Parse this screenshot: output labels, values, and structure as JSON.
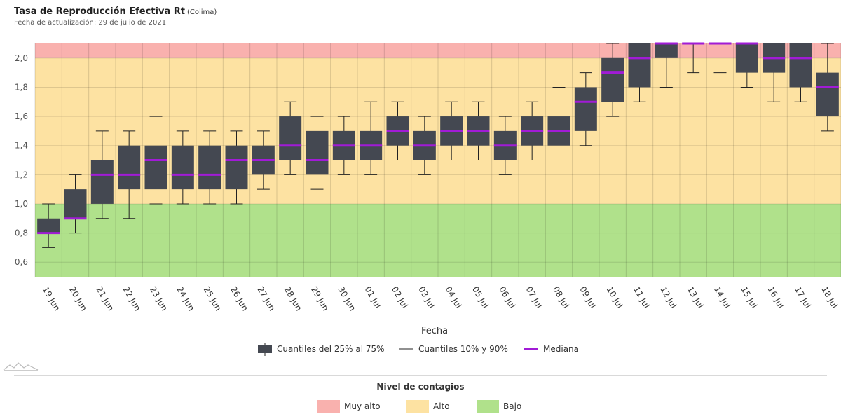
{
  "header": {
    "title": "Tasa de Reproducción Efectiva Rt",
    "region": "(Colima)",
    "updated": "Fecha de actualización: 29 de julio de 2021"
  },
  "chart_data": {
    "type": "boxplot",
    "xlabel": "Fecha",
    "ylabel": "",
    "ylim": [
      0.5,
      2.1
    ],
    "yticks": [
      0.6,
      0.8,
      1.0,
      1.2,
      1.4,
      1.6,
      1.8,
      2.0
    ],
    "ytick_labels": [
      "0,6",
      "0,8",
      "1,0",
      "1,2",
      "1,4",
      "1,6",
      "1,8",
      "2,0"
    ],
    "categories": [
      "19 Jun",
      "20 Jun",
      "21 Jun",
      "22 Jun",
      "23 Jun",
      "24 Jun",
      "25 Jun",
      "26 Jun",
      "27 Jun",
      "28 Jun",
      "29 Jun",
      "30 Jun",
      "01 Jul",
      "02 Jul",
      "03 Jul",
      "04 Jul",
      "05 Jul",
      "06 Jul",
      "07 Jul",
      "08 Jul",
      "09 Jul",
      "10 Jul",
      "11 Jul",
      "12 Jul",
      "13 Jul",
      "14 Jul",
      "15 Jul",
      "16 Jul",
      "17 Jul",
      "18 Jul"
    ],
    "p10": [
      0.7,
      0.8,
      0.9,
      0.9,
      1.0,
      1.0,
      1.0,
      1.0,
      1.1,
      1.2,
      1.1,
      1.2,
      1.2,
      1.3,
      1.2,
      1.3,
      1.3,
      1.2,
      1.3,
      1.3,
      1.4,
      1.6,
      1.7,
      1.8,
      1.9,
      1.9,
      1.8,
      1.7,
      1.7,
      1.5
    ],
    "q25": [
      0.8,
      0.9,
      1.0,
      1.1,
      1.1,
      1.1,
      1.1,
      1.1,
      1.2,
      1.3,
      1.2,
      1.3,
      1.3,
      1.4,
      1.3,
      1.4,
      1.4,
      1.3,
      1.4,
      1.4,
      1.5,
      1.7,
      1.8,
      2.0,
      2.1,
      2.1,
      1.9,
      1.9,
      1.8,
      1.6
    ],
    "median": [
      0.8,
      0.9,
      1.2,
      1.2,
      1.3,
      1.2,
      1.2,
      1.3,
      1.3,
      1.4,
      1.3,
      1.4,
      1.4,
      1.5,
      1.4,
      1.5,
      1.5,
      1.4,
      1.5,
      1.5,
      1.7,
      1.9,
      2.0,
      2.1,
      2.1,
      2.1,
      2.1,
      2.0,
      2.0,
      1.8
    ],
    "q75": [
      0.9,
      1.1,
      1.3,
      1.4,
      1.4,
      1.4,
      1.4,
      1.4,
      1.4,
      1.6,
      1.5,
      1.5,
      1.5,
      1.6,
      1.5,
      1.6,
      1.6,
      1.5,
      1.6,
      1.6,
      1.8,
      2.0,
      2.1,
      2.1,
      2.1,
      2.1,
      2.1,
      2.1,
      2.1,
      1.9
    ],
    "p90": [
      1.0,
      1.2,
      1.5,
      1.5,
      1.6,
      1.5,
      1.5,
      1.5,
      1.5,
      1.7,
      1.6,
      1.6,
      1.7,
      1.7,
      1.6,
      1.7,
      1.7,
      1.6,
      1.7,
      1.8,
      1.9,
      2.1,
      2.1,
      2.1,
      2.1,
      2.1,
      2.1,
      2.1,
      2.1,
      2.1
    ],
    "bands": [
      {
        "name": "Bajo",
        "from": 0.5,
        "to": 1.0,
        "color": "#b0e18b"
      },
      {
        "name": "Alto",
        "from": 1.0,
        "to": 2.0,
        "color": "#fde2a2"
      },
      {
        "name": "Muy alto",
        "from": 2.0,
        "to": 2.1,
        "color": "#f9b1ae"
      }
    ],
    "legend": [
      {
        "name": "Cuantiles del 25% al 75%",
        "kind": "box",
        "color": "#444851"
      },
      {
        "name": "Cuantiles 10% y 90%",
        "kind": "whisker",
        "color": "#222222"
      },
      {
        "name": "Mediana",
        "kind": "median",
        "color": "#a11bd6"
      }
    ],
    "box_color": "#444851",
    "median_color": "#a11bd6"
  },
  "nivel": {
    "title": "Nivel de contagios",
    "items": [
      {
        "label": "Muy alto",
        "color": "#f9b1ae"
      },
      {
        "label": "Alto",
        "color": "#fde2a2"
      },
      {
        "label": "Bajo",
        "color": "#b0e18b"
      }
    ]
  }
}
